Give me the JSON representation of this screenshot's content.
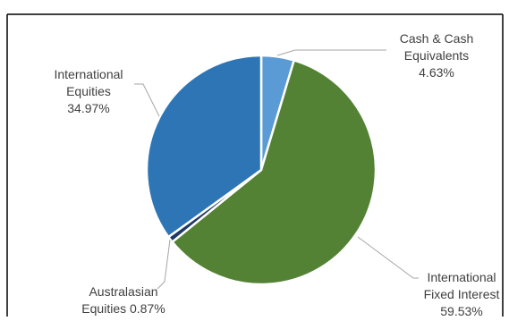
{
  "chart_data": {
    "type": "pie",
    "title": "",
    "slices": [
      {
        "label_lines": [
          "Cash & Cash",
          "Equivalents"
        ],
        "value_label": "4.63%",
        "value": 4.63,
        "color": "#5b9bd5"
      },
      {
        "label_lines": [
          "International",
          "Fixed Interest"
        ],
        "value_label": "59.53%",
        "value": 59.53,
        "color": "#548235"
      },
      {
        "label_lines": [
          "Australasian"
        ],
        "value_label": "Equities 0.87%",
        "value": 0.87,
        "color": "#203864"
      },
      {
        "label_lines": [
          "International",
          "Equities"
        ],
        "value_label": "34.97%",
        "value": 34.97,
        "color": "#2e75b6"
      }
    ],
    "legend": "none"
  }
}
